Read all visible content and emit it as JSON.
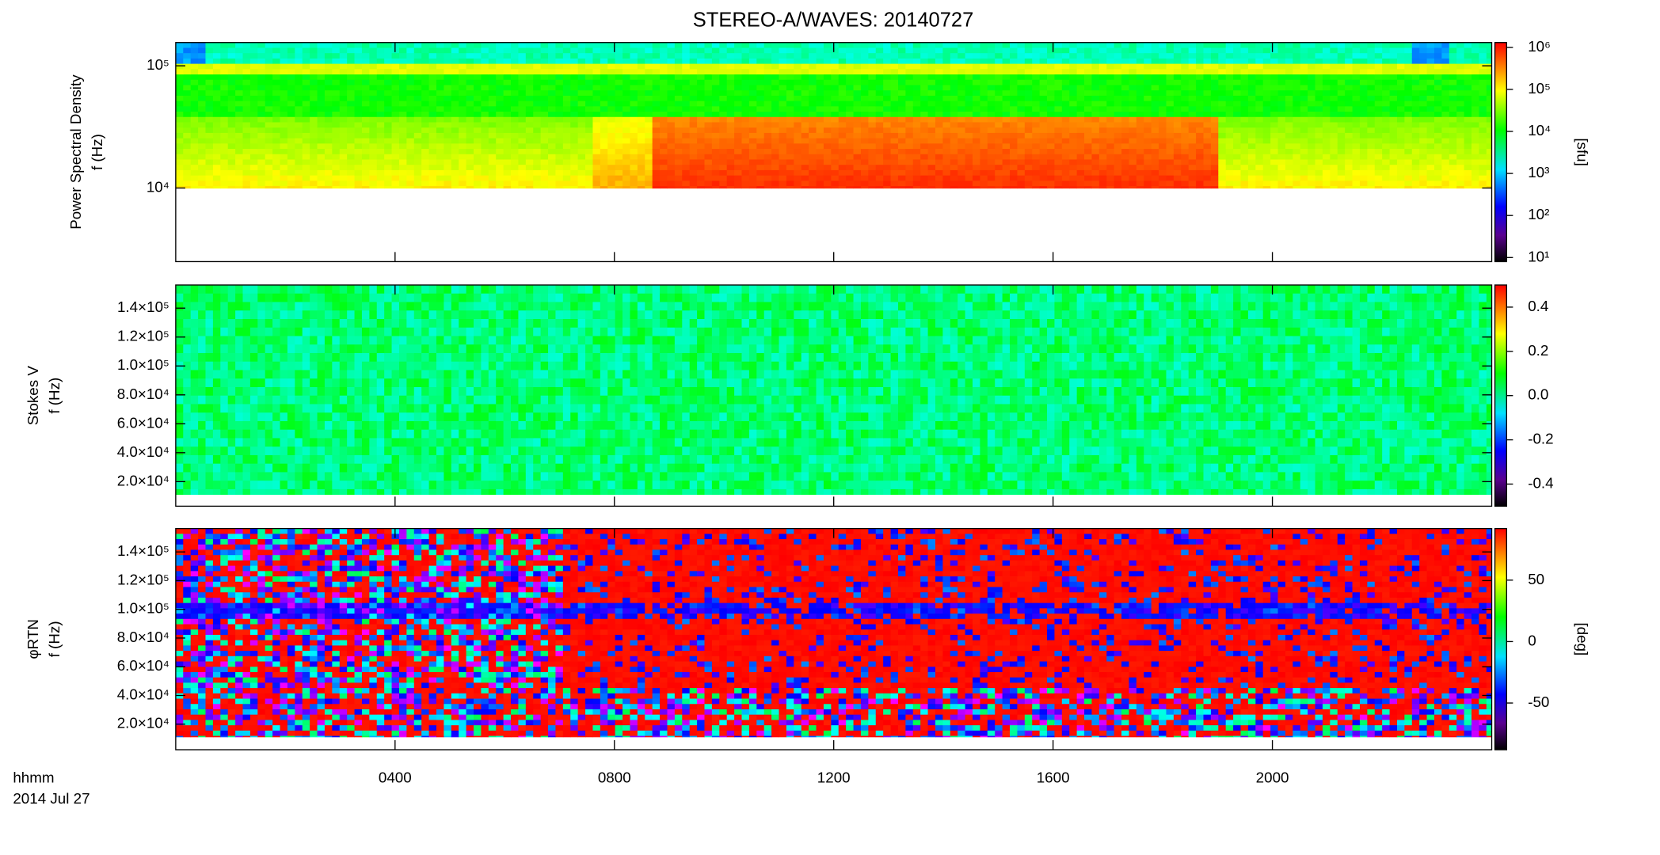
{
  "chart_data": {
    "type": "spectrogram",
    "title": "STEREO-A/WAVES: 20140727",
    "x_labels": [
      "hhmm",
      "2014 Jul 27"
    ],
    "xlim": [
      0,
      24
    ],
    "xticks": [
      {
        "value": 4,
        "label": "0400"
      },
      {
        "value": 8,
        "label": "0800"
      },
      {
        "value": 12,
        "label": "1200"
      },
      {
        "value": 16,
        "label": "1600"
      },
      {
        "value": 20,
        "label": "2000"
      }
    ],
    "panels": [
      {
        "ylabel": [
          "Power Spectral Density",
          "f (Hz)"
        ],
        "ylog": true,
        "ylim": [
          2500,
          155000
        ],
        "yticks": [
          {
            "value": 10000,
            "label": "10⁴"
          },
          {
            "value": 100000,
            "label": "10⁵"
          }
        ],
        "colorbar": {
          "label": "[sfu]",
          "log": true,
          "lim": [
            8,
            1300000
          ],
          "ticks": [
            {
              "value": 10,
              "label": "10¹"
            },
            {
              "value": 100,
              "label": "10²"
            },
            {
              "value": 1000,
              "label": "10³"
            },
            {
              "value": 10000,
              "label": "10⁴"
            },
            {
              "value": 100000,
              "label": "10⁵"
            },
            {
              "value": 1000000,
              "label": "10⁶"
            }
          ]
        }
      },
      {
        "ylabel": [
          "Stokes V",
          "f (Hz)"
        ],
        "ylog": false,
        "ylim": [
          3000,
          156000
        ],
        "yticks": [
          {
            "value": 20000,
            "label": "2.0×10⁴"
          },
          {
            "value": 40000,
            "label": "4.0×10⁴"
          },
          {
            "value": 60000,
            "label": "6.0×10⁴"
          },
          {
            "value": 80000,
            "label": "8.0×10⁴"
          },
          {
            "value": 100000,
            "label": "1.0×10⁵"
          },
          {
            "value": 120000,
            "label": "1.2×10⁵"
          },
          {
            "value": 140000,
            "label": "1.4×10⁵"
          }
        ],
        "colorbar": {
          "label": "",
          "log": false,
          "lim": [
            -0.5,
            0.5
          ],
          "ticks": [
            -0.4,
            -0.2,
            {
              "value": 0,
              "label": "0.0"
            },
            0.2,
            0.4
          ]
        }
      },
      {
        "ylabel": [
          "φRTN",
          "f (Hz)"
        ],
        "ylog": false,
        "ylim": [
          2200,
          156300
        ],
        "yticks": [
          {
            "value": 20000,
            "label": "2.0×10⁴"
          },
          {
            "value": 40000,
            "label": "4.0×10⁴"
          },
          {
            "value": 60000,
            "label": "6.0×10⁴"
          },
          {
            "value": 80000,
            "label": "8.0×10⁴"
          },
          {
            "value": 100000,
            "label": "1.0×10⁵"
          },
          {
            "value": 120000,
            "label": "1.2×10⁵"
          },
          {
            "value": 140000,
            "label": "1.4×10⁵"
          }
        ],
        "colorbar": {
          "label": "[deg]",
          "log": false,
          "lim": [
            -88,
            92
          ],
          "ticks": [
            -50,
            0,
            50
          ]
        }
      }
    ]
  }
}
